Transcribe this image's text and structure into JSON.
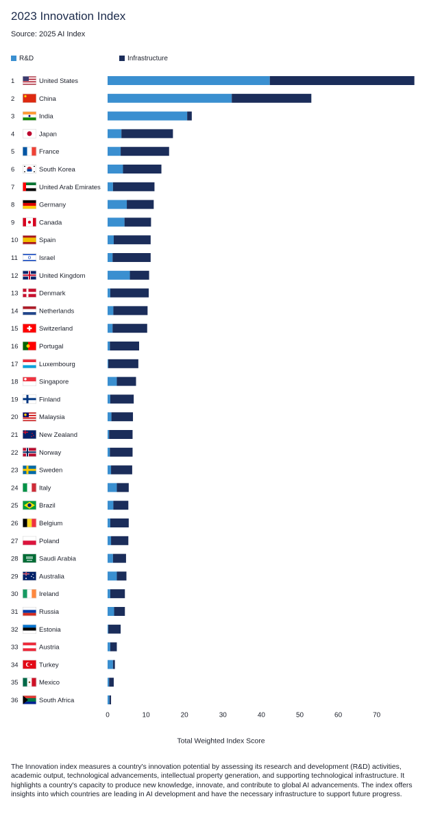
{
  "title": "2023 Innovation Index",
  "source": "Source: 2025 AI Index",
  "colors": {
    "rd": "#3a8fd0",
    "infrastructure": "#1b2d5a"
  },
  "legend": {
    "rd_label": "R&D",
    "infrastructure_label": "Infrastructure"
  },
  "note": "The Innovation index measures a country's innovation potential by assessing its research and development (R&D) activities, academic output, technological advancements, intellectual property generation, and supporting technological infrastructure. It highlights a country's capacity to produce new knowledge, innovate, and contribute to global AI advancements. The index offers insights into which countries are leading in AI development and have the necessary infrastructure to support future progress.",
  "chart_data": {
    "type": "bar",
    "orientation": "horizontal",
    "stacked": true,
    "xlabel": "Total Weighted Index Score",
    "xlim": [
      0,
      80
    ],
    "xticks": [
      0,
      10,
      20,
      30,
      40,
      50,
      60,
      70
    ],
    "grid": false,
    "legend_position": "top-left",
    "ranks": [
      1,
      2,
      3,
      4,
      5,
      6,
      7,
      8,
      9,
      10,
      11,
      12,
      13,
      14,
      15,
      16,
      17,
      18,
      19,
      20,
      21,
      22,
      23,
      24,
      25,
      26,
      27,
      28,
      29,
      30,
      31,
      32,
      33,
      34,
      35,
      36
    ],
    "categories": [
      "United States",
      "China",
      "India",
      "Japan",
      "France",
      "South Korea",
      "United Arab Emirates",
      "Germany",
      "Canada",
      "Spain",
      "Israel",
      "United Kingdom",
      "Denmark",
      "Netherlands",
      "Switzerland",
      "Portugal",
      "Luxembourg",
      "Singapore",
      "Finland",
      "Malaysia",
      "New Zealand",
      "Norway",
      "Sweden",
      "Italy",
      "Brazil",
      "Belgium",
      "Poland",
      "Saudi Arabia",
      "Australia",
      "Ireland",
      "Russia",
      "Estonia",
      "Austria",
      "Turkey",
      "Mexico",
      "South Africa"
    ],
    "flags": [
      "us",
      "cn",
      "in",
      "jp",
      "fr",
      "kr",
      "ae",
      "de",
      "ca",
      "es",
      "il",
      "gb",
      "dk",
      "nl",
      "ch",
      "pt",
      "lu",
      "sg",
      "fi",
      "my",
      "nz",
      "no",
      "se",
      "it",
      "br",
      "be",
      "pl",
      "sa",
      "au",
      "ie",
      "ru",
      "ee",
      "at",
      "tr",
      "mx",
      "za"
    ],
    "series": [
      {
        "name": "R&D",
        "values": [
          42.2,
          32.3,
          20.7,
          3.6,
          3.4,
          4.0,
          1.4,
          5.0,
          4.4,
          1.6,
          1.3,
          5.8,
          0.7,
          1.5,
          1.3,
          0.6,
          0.2,
          2.4,
          0.7,
          1.0,
          0.4,
          0.6,
          0.9,
          2.4,
          1.5,
          0.7,
          0.9,
          1.4,
          2.4,
          0.7,
          1.7,
          0.2,
          0.7,
          1.4,
          0.4,
          0.5
        ]
      },
      {
        "name": "Infrastructure",
        "values": [
          37.6,
          20.7,
          1.2,
          13.4,
          12.6,
          10.0,
          10.8,
          7.0,
          6.9,
          9.6,
          9.9,
          5.0,
          10.0,
          8.9,
          9.0,
          7.6,
          7.8,
          5.0,
          6.1,
          5.6,
          6.1,
          5.9,
          5.5,
          3.1,
          3.9,
          4.8,
          4.5,
          3.4,
          2.5,
          3.8,
          2.8,
          3.2,
          1.7,
          0.5,
          1.2,
          0.4
        ]
      }
    ]
  }
}
